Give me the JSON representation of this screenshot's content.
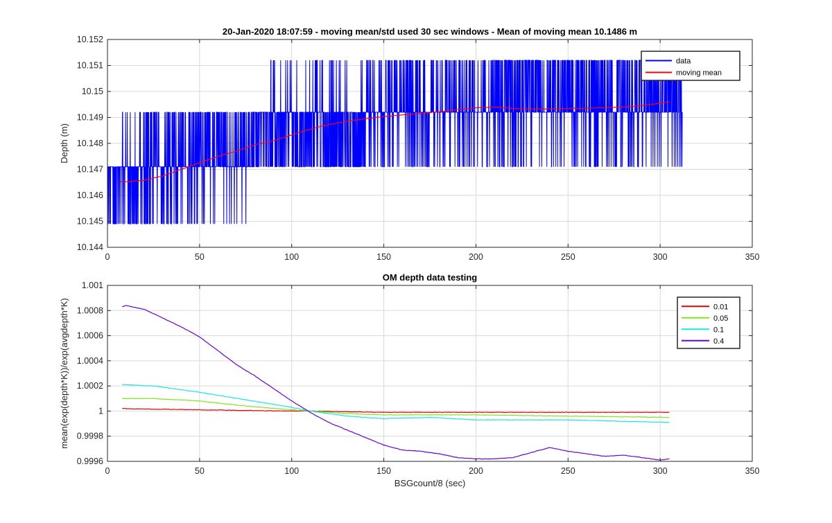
{
  "figure": {
    "background": "#ffffff",
    "grid_color": "#d9d9d9",
    "axis_color": "#262626"
  },
  "chart_data": [
    {
      "type": "line",
      "title": "20-Jan-2020 18:07:59 - moving mean/std used 30 sec windows - Mean of moving mean 10.1486 m",
      "xlabel": "",
      "ylabel": "Depth (m)",
      "xlim": [
        0,
        350
      ],
      "ylim": [
        10.144,
        10.152
      ],
      "xticks": [
        0,
        50,
        100,
        150,
        200,
        250,
        300,
        350
      ],
      "yticks": [
        10.144,
        10.145,
        10.146,
        10.147,
        10.148,
        10.149,
        10.15,
        10.151,
        10.152
      ],
      "xtick_labels": [
        "0",
        "50",
        "100",
        "150",
        "200",
        "250",
        "300",
        "350"
      ],
      "ytick_labels": [
        "10.144",
        "10.145",
        "10.146",
        "10.147",
        "10.148",
        "10.149",
        "10.15",
        "10.151",
        "10.152"
      ],
      "grid": true,
      "legend": "top-right",
      "series": [
        {
          "name": "data",
          "color": "#0000ff",
          "style": "noise",
          "x_range": [
            0,
            312
          ],
          "levels": [
            10.1449,
            10.1471,
            10.1492,
            10.1512
          ],
          "regimes": [
            {
              "x": [
                0,
                20
              ],
              "base": 10.1471,
              "down": 10.1449,
              "up": 10.1492,
              "p_down": 0.35,
              "p_up": 0.04
            },
            {
              "x": [
                20,
                40
              ],
              "base": 10.1471,
              "down": 10.1449,
              "up": 10.1492,
              "p_down": 0.2,
              "p_up": 0.22
            },
            {
              "x": [
                40,
                78
              ],
              "base": 10.1471,
              "down": 10.1449,
              "up": 10.1492,
              "p_down": 0.06,
              "p_up": 0.4
            },
            {
              "x": [
                78,
                88
              ],
              "base": 10.1492,
              "down": 10.1471,
              "up": 10.1512,
              "p_down": 0.35,
              "p_up": 0.0
            },
            {
              "x": [
                88,
                140
              ],
              "base": 10.1492,
              "down": 10.1471,
              "up": 10.1512,
              "p_down": 0.35,
              "p_up": 0.08
            },
            {
              "x": [
                140,
                210
              ],
              "base": 10.1492,
              "down": 10.1471,
              "up": 10.1512,
              "p_down": 0.16,
              "p_up": 0.22
            },
            {
              "x": [
                210,
                312
              ],
              "base": 10.1492,
              "down": 10.1471,
              "up": 10.1512,
              "p_down": 0.12,
              "p_up": 0.38
            }
          ]
        },
        {
          "name": "moving mean",
          "color": "#ff0000",
          "style": "line",
          "x": [
            7,
            10,
            20,
            30,
            40,
            50,
            60,
            70,
            80,
            90,
            100,
            110,
            120,
            130,
            140,
            150,
            160,
            170,
            180,
            190,
            200,
            210,
            220,
            230,
            240,
            250,
            260,
            270,
            280,
            290,
            300,
            305
          ],
          "values": [
            10.14653,
            10.14652,
            10.14658,
            10.14675,
            10.147,
            10.14725,
            10.1475,
            10.1477,
            10.14795,
            10.1481,
            10.14833,
            10.14855,
            10.14872,
            10.14885,
            10.14895,
            10.14903,
            10.1491,
            10.14915,
            10.14922,
            10.1493,
            10.14937,
            10.1494,
            10.14935,
            10.14932,
            10.14933,
            10.14935,
            10.14935,
            10.14938,
            10.1494,
            10.14945,
            10.14955,
            10.1496
          ]
        }
      ]
    },
    {
      "type": "line",
      "title": "OM depth data testing",
      "xlabel": "BSGcount/8 (sec)",
      "ylabel": "mean(exp(depth*K))/exp(avgdepth*K)",
      "xlim": [
        0,
        350
      ],
      "ylim": [
        0.9996,
        1.001
      ],
      "xticks": [
        0,
        50,
        100,
        150,
        200,
        250,
        300,
        350
      ],
      "yticks": [
        0.9996,
        0.9998,
        1.0,
        1.0002,
        1.0004,
        1.0006,
        1.0008,
        1.001
      ],
      "xtick_labels": [
        "0",
        "50",
        "100",
        "150",
        "200",
        "250",
        "300",
        "350"
      ],
      "ytick_labels": [
        "0.9996",
        "0.9998",
        "1",
        "1.0002",
        "1.0004",
        "1.0006",
        "1.0008",
        "1.001"
      ],
      "grid": true,
      "legend": "top-right",
      "series": [
        {
          "name": "0.01",
          "color": "#e60000",
          "x": [
            8,
            50,
            100,
            110,
            150,
            200,
            250,
            305
          ],
          "values": [
            1.00002,
            1.00001,
            1.0,
            1.0,
            0.99999,
            0.99999,
            0.99999,
            0.99999
          ]
        },
        {
          "name": "0.05",
          "color": "#80e619",
          "x": [
            8,
            25,
            50,
            75,
            100,
            110,
            130,
            150,
            200,
            250,
            305
          ],
          "values": [
            1.0001,
            1.0001,
            1.00008,
            1.00004,
            1.00001,
            1.0,
            0.99998,
            0.99997,
            0.99997,
            0.99996,
            0.99995
          ]
        },
        {
          "name": "0.1",
          "color": "#19e6e6",
          "x": [
            8,
            25,
            50,
            75,
            100,
            110,
            130,
            150,
            175,
            200,
            225,
            250,
            275,
            305
          ],
          "values": [
            1.00021,
            1.0002,
            1.00015,
            1.00009,
            1.00003,
            1.0,
            0.99996,
            0.99994,
            0.99995,
            0.99993,
            0.99993,
            0.99993,
            0.99992,
            0.99991
          ]
        },
        {
          "name": "0.4",
          "color": "#6600e6",
          "x": [
            8,
            10,
            20,
            30,
            40,
            50,
            60,
            70,
            80,
            90,
            100,
            110,
            120,
            130,
            140,
            150,
            160,
            170,
            180,
            190,
            200,
            210,
            220,
            230,
            240,
            250,
            260,
            270,
            280,
            290,
            300,
            305
          ],
          "values": [
            1.00083,
            1.00084,
            1.00081,
            1.00074,
            1.00067,
            1.00059,
            1.00048,
            1.00037,
            1.00028,
            1.00018,
            1.00008,
            0.99999,
            0.99991,
            0.99985,
            0.99979,
            0.99973,
            0.99969,
            0.99968,
            0.99966,
            0.99963,
            0.99962,
            0.99962,
            0.99963,
            0.99967,
            0.99971,
            0.99968,
            0.99966,
            0.99964,
            0.99965,
            0.99963,
            0.99961,
            0.99962
          ]
        }
      ]
    }
  ]
}
